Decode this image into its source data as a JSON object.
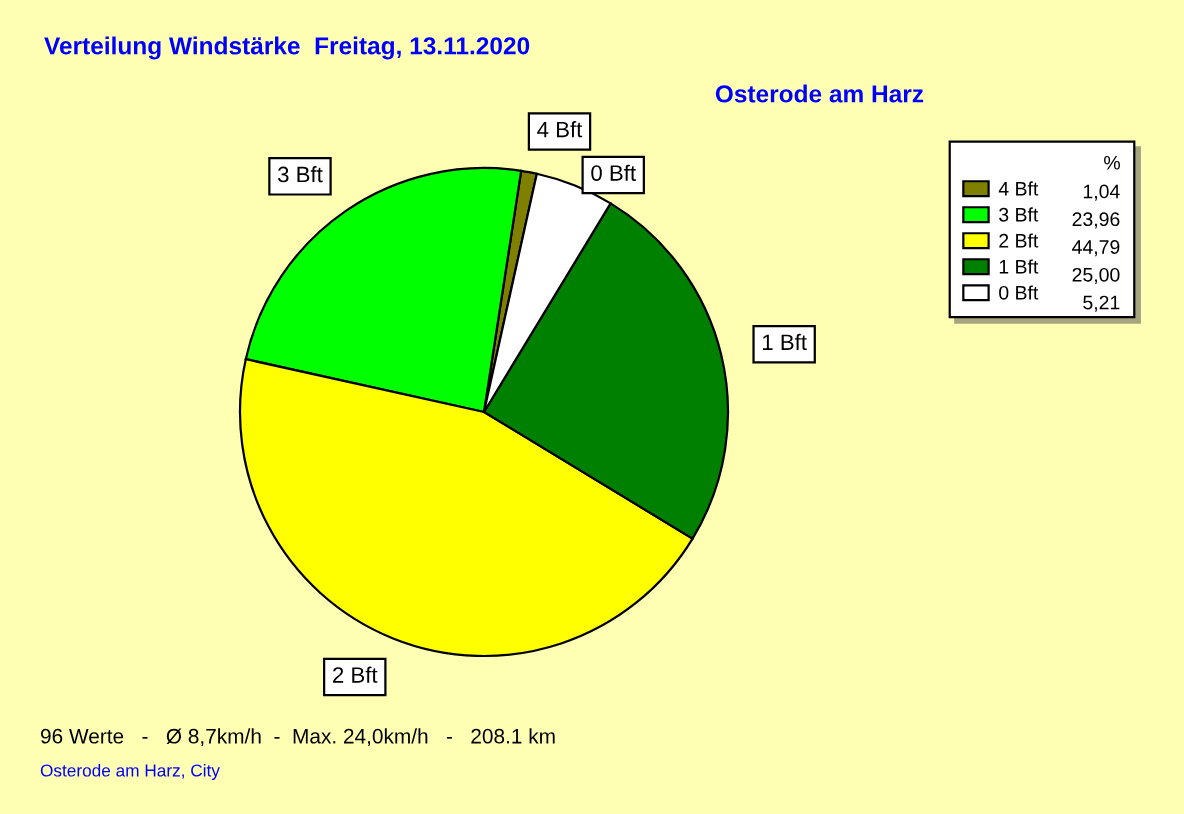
{
  "chart_data": {
    "type": "pie",
    "title": "Verteilung Windstärke  Freitag, 13.11.2020",
    "subtitle": "Osterode am Harz",
    "categories": [
      "4 Bft",
      "3 Bft",
      "2 Bft",
      "1 Bft",
      "0 Bft"
    ],
    "values": [
      1.04,
      23.96,
      44.79,
      25.0,
      5.21
    ],
    "value_labels": [
      "1,04",
      "23,96",
      "44,79",
      "25,00",
      "5,21"
    ],
    "colors": [
      "#808000",
      "#00ff00",
      "#ffff00",
      "#008000",
      "#ffffff"
    ],
    "legend": "top right",
    "legend_title": "%",
    "annotations": [
      "96 Werte   -   Ø 8,7km/h  -  Max. 24,0km/h   -   208.1 km",
      "Osterode am Harz, City"
    ]
  }
}
